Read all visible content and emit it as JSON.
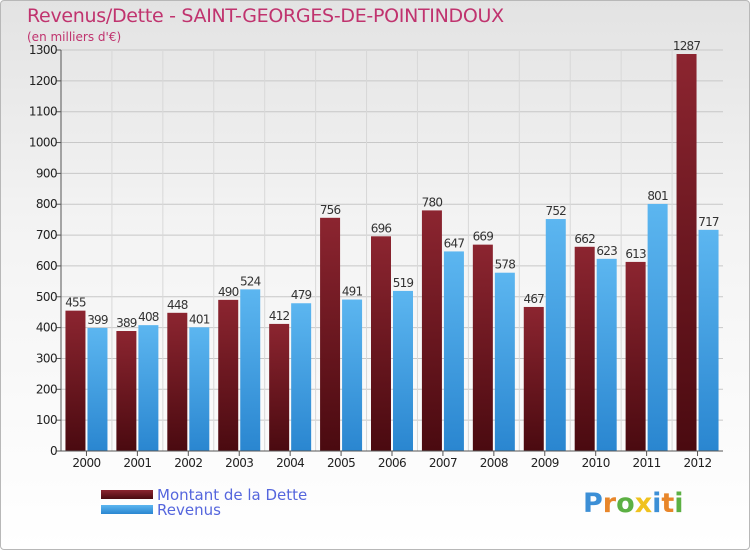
{
  "header": {
    "title": "Revenus/Dette - SAINT-GEORGES-DE-POINTINDOUX",
    "subtitle": "(en milliers d'€)"
  },
  "legend": {
    "dette_label": "Montant de la Dette",
    "revenus_label": "Revenus"
  },
  "brand": {
    "letters": [
      "P",
      "r",
      "o",
      "x",
      "i",
      "t",
      "i"
    ],
    "colors": [
      "#3c8fd6",
      "#e8862a",
      "#5cb043",
      "#f0c21e",
      "#3c8fd6",
      "#e8862a",
      "#5cb043"
    ]
  },
  "colors": {
    "dette_top": "#8c2530",
    "dette_bottom": "#4a0a10",
    "revenus_top": "#5cb6f0",
    "revenus_bottom": "#2a86d0",
    "title": "#c0336e",
    "legend_text": "#5566dd"
  },
  "chart_data": {
    "type": "bar",
    "title": "Revenus/Dette - SAINT-GEORGES-DE-POINTINDOUX",
    "ylabel": "(en milliers d'€)",
    "xlabel": "",
    "categories": [
      "2000",
      "2001",
      "2002",
      "2003",
      "2004",
      "2005",
      "2006",
      "2007",
      "2008",
      "2009",
      "2010",
      "2011",
      "2012"
    ],
    "series": [
      {
        "name": "Montant de la Dette",
        "values": [
          455,
          389,
          448,
          490,
          412,
          756,
          696,
          780,
          669,
          467,
          662,
          613,
          1287
        ]
      },
      {
        "name": "Revenus",
        "values": [
          399,
          408,
          401,
          524,
          479,
          491,
          519,
          647,
          578,
          752,
          623,
          801,
          717
        ]
      }
    ],
    "ylim": [
      0,
      1300
    ],
    "yticks": [
      0,
      100,
      200,
      300,
      400,
      500,
      600,
      700,
      800,
      900,
      1000,
      1100,
      1200,
      1300
    ],
    "grid": true,
    "legend_position": "bottom-left"
  }
}
